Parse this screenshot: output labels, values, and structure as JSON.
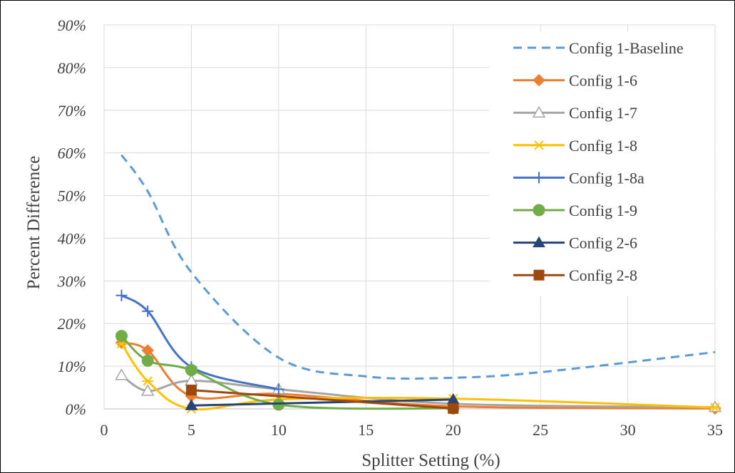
{
  "chart_data": {
    "type": "line",
    "xlabel": "Splitter Setting (%)",
    "ylabel": "Percent Difference",
    "xlim": [
      0,
      35
    ],
    "ylim": [
      0,
      90
    ],
    "x_ticks": [
      "0",
      "5",
      "10",
      "15",
      "20",
      "25",
      "30",
      "35"
    ],
    "y_ticks": [
      "0%",
      "10%",
      "20%",
      "30%",
      "40%",
      "50%",
      "60%",
      "70%",
      "80%",
      "90%"
    ],
    "grid": true,
    "legend_position": "right",
    "series": [
      {
        "name": "Config 1-Baseline",
        "color": "#5B9BD5",
        "dash": true,
        "marker": "none",
        "x": [
          1,
          2.5,
          5,
          10,
          15,
          20,
          25,
          35
        ],
        "y": [
          59.5,
          51,
          32,
          12,
          7.6,
          7.3,
          8.6,
          13.3
        ]
      },
      {
        "name": "Config 1-6",
        "color": "#ED7D31",
        "dash": false,
        "marker": "diamond",
        "x": [
          1,
          2.5,
          5,
          10,
          20,
          35
        ],
        "y": [
          15.5,
          13.7,
          3,
          3.5,
          0.6,
          0.1
        ]
      },
      {
        "name": "Config 1-7",
        "color": "#A5A5A5",
        "dash": false,
        "marker": "triangle-open",
        "x": [
          1,
          2.5,
          5,
          10,
          20,
          35
        ],
        "y": [
          7.9,
          4.2,
          6.6,
          4.6,
          1.2,
          0.4
        ]
      },
      {
        "name": "Config 1-8",
        "color": "#FFC000",
        "dash": false,
        "marker": "star",
        "x": [
          1,
          2.5,
          5,
          10,
          20,
          35
        ],
        "y": [
          15.3,
          6.5,
          0,
          2.2,
          2.4,
          0.3
        ]
      },
      {
        "name": "Config 1-8a",
        "color": "#4472C4",
        "dash": false,
        "marker": "plus",
        "x": [
          1,
          2.5,
          5,
          10
        ],
        "y": [
          26.6,
          22.9,
          9.8,
          4.6
        ]
      },
      {
        "name": "Config 1-9",
        "color": "#70AD47",
        "dash": false,
        "marker": "circle",
        "x": [
          1,
          2.5,
          5,
          10,
          20
        ],
        "y": [
          17.1,
          11.3,
          9.1,
          1,
          0.1
        ]
      },
      {
        "name": "Config 2-6",
        "color": "#264478",
        "dash": false,
        "marker": "triangle",
        "x": [
          5,
          20
        ],
        "y": [
          0.8,
          2.2
        ]
      },
      {
        "name": "Config 2-8",
        "color": "#9E480E",
        "dash": false,
        "marker": "square",
        "x": [
          5,
          20
        ],
        "y": [
          4.4,
          0.1
        ]
      }
    ]
  }
}
